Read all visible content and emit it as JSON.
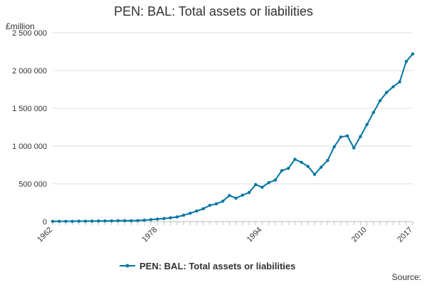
{
  "chart_data": {
    "type": "line",
    "title": "PEN: BAL: Total assets or liabilities",
    "ylabel": "£million",
    "xlabel": "",
    "source_label": "Source:",
    "ylim": [
      0,
      2500000
    ],
    "xlim": [
      1962,
      2017
    ],
    "y_ticks": [
      0,
      500000,
      1000000,
      1500000,
      2000000,
      2500000
    ],
    "y_tick_labels": [
      "0",
      "500 000",
      "1 000 000",
      "1 500 000",
      "2 000 000",
      "2 500 000"
    ],
    "x_tick_labels": [
      "1962",
      "1978",
      "1994",
      "2010",
      "2017"
    ],
    "x_tick_values": [
      1962,
      1978,
      1994,
      2010,
      2017
    ],
    "legend_position": "bottom",
    "grid": true,
    "colors": {
      "series": "#0075a3",
      "grid": "#dddddd",
      "axis": "#bebebe"
    },
    "series": [
      {
        "name": "PEN: BAL: Total assets or liabilities",
        "x": [
          1962,
          1963,
          1964,
          1965,
          1966,
          1967,
          1968,
          1969,
          1970,
          1971,
          1972,
          1973,
          1974,
          1975,
          1976,
          1977,
          1978,
          1979,
          1980,
          1981,
          1982,
          1983,
          1984,
          1985,
          1986,
          1987,
          1988,
          1989,
          1990,
          1991,
          1992,
          1993,
          1994,
          1995,
          1996,
          1997,
          1998,
          1999,
          2000,
          2001,
          2002,
          2003,
          2004,
          2005,
          2006,
          2007,
          2008,
          2009,
          2010,
          2011,
          2012,
          2013,
          2014,
          2015,
          2016,
          2017
        ],
        "values": [
          3000,
          3500,
          4000,
          4500,
          5000,
          5500,
          6500,
          7500,
          8500,
          9500,
          11000,
          12000,
          11000,
          14000,
          19000,
          26000,
          33000,
          40000,
          50000,
          62000,
          84000,
          110000,
          140000,
          170000,
          215000,
          235000,
          270000,
          345000,
          310000,
          350000,
          385000,
          490000,
          455000,
          515000,
          550000,
          675000,
          705000,
          825000,
          785000,
          730000,
          625000,
          720000,
          810000,
          990000,
          1120000,
          1135000,
          975000,
          1125000,
          1285000,
          1445000,
          1600000,
          1710000,
          1785000,
          1850000,
          2120000,
          2220000
        ]
      }
    ]
  }
}
